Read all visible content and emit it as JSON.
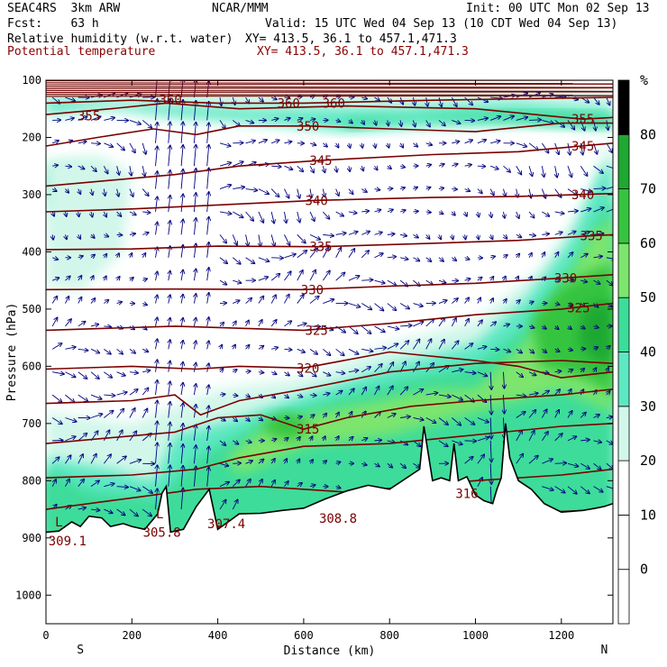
{
  "header": {
    "model": "SEAC4RS  3km ARW",
    "org": "NCAR/MMM",
    "init": "Init: 00 UTC Mon 02 Sep 13",
    "fcst": "Fcst:    63 h",
    "valid": "Valid: 15 UTC Wed 04 Sep 13 (10 CDT Wed 04 Sep 13)",
    "field1": "Relative humidity (w.r.t. water)",
    "xy1": "XY= 413.5, 36.1 to 457.1,471.3",
    "field2": "Potential temperature",
    "xy2": "XY= 413.5, 36.1 to 457.1,471.3"
  },
  "colors": {
    "theta_line": "#7a0000",
    "wind_vector": "#000080",
    "terrain": "#ffffff",
    "rh_levels": [
      "#ffffff",
      "#ffffff",
      "#ffffff",
      "#d2f7ea",
      "#5de8c2",
      "#3ddc9a",
      "#7de56d",
      "#36c43f",
      "#1fa832"
    ]
  },
  "chart_data": {
    "type": "contour",
    "xlabel": "Distance (km)",
    "ylabel": "Pressure (hPa)",
    "xlim": [
      0,
      1320
    ],
    "ylim": [
      1050,
      100
    ],
    "x_ticks": [
      0,
      200,
      400,
      600,
      800,
      1000,
      1200
    ],
    "y_ticks": [
      100,
      200,
      300,
      400,
      500,
      600,
      700,
      800,
      900,
      1000
    ],
    "end_labels": {
      "left": "S",
      "right": "N"
    },
    "colorbar": {
      "unit": "%",
      "levels": [
        -10,
        0,
        10,
        20,
        30,
        40,
        50,
        60,
        70,
        80,
        90
      ],
      "tick_labels": [
        0,
        10,
        20,
        30,
        40,
        50,
        60,
        70,
        80
      ]
    },
    "terrain_surface": {
      "x": [
        0,
        30,
        60,
        80,
        100,
        130,
        150,
        180,
        200,
        230,
        260,
        270,
        280,
        290,
        300,
        320,
        350,
        380,
        400,
        450,
        500,
        550,
        600,
        650,
        700,
        750,
        800,
        850,
        870,
        880,
        900,
        920,
        940,
        950,
        960,
        980,
        1000,
        1020,
        1040,
        1050,
        1060,
        1070,
        1080,
        1100,
        1130,
        1160,
        1200,
        1250,
        1280,
        1300,
        1320
      ],
      "p": [
        890,
        888,
        872,
        880,
        862,
        865,
        880,
        875,
        880,
        885,
        858,
        822,
        810,
        890,
        888,
        885,
        845,
        815,
        885,
        858,
        857,
        852,
        848,
        832,
        818,
        808,
        815,
        790,
        780,
        705,
        800,
        795,
        800,
        735,
        800,
        793,
        825,
        835,
        840,
        815,
        795,
        700,
        760,
        800,
        815,
        840,
        855,
        852,
        848,
        845,
        840
      ]
    },
    "theta_contours": [
      {
        "value": 305.8,
        "label": "305.8",
        "x": 270,
        "p": 890
      },
      {
        "value": 307.4,
        "label": "307.4",
        "x": 420,
        "p": 875
      },
      {
        "value": 308.8,
        "label": "308.8",
        "x": 680,
        "p": 866
      },
      {
        "value": 309.1,
        "label": "309.1",
        "x": 50,
        "p": 905
      },
      {
        "value": 315,
        "label": "315",
        "x": 610,
        "p": 710
      },
      {
        "value": 316,
        "label": "316",
        "x": 980,
        "p": 822
      },
      {
        "value": 320,
        "label": "320",
        "x": 610,
        "p": 603
      },
      {
        "value": 325,
        "label": "325",
        "x": 630,
        "p": 537
      },
      {
        "value": 325,
        "label": "325",
        "x": 1240,
        "p": 498
      },
      {
        "value": 330,
        "label": "330",
        "x": 620,
        "p": 466
      },
      {
        "value": 330,
        "label": "330",
        "x": 1210,
        "p": 446
      },
      {
        "value": 335,
        "label": "335",
        "x": 640,
        "p": 391
      },
      {
        "value": 335,
        "label": "335",
        "x": 1270,
        "p": 372
      },
      {
        "value": 340,
        "label": "340",
        "x": 630,
        "p": 310
      },
      {
        "value": 340,
        "label": "340",
        "x": 1250,
        "p": 300
      },
      {
        "value": 345,
        "label": "345",
        "x": 640,
        "p": 240
      },
      {
        "value": 345,
        "label": "345",
        "x": 1250,
        "p": 215
      },
      {
        "value": 350,
        "label": "350",
        "x": 610,
        "p": 180
      },
      {
        "value": 355,
        "label": "355",
        "x": 100,
        "p": 162
      },
      {
        "value": 355,
        "label": "355",
        "x": 1250,
        "p": 168
      },
      {
        "value": 360,
        "label": "360",
        "x": 290,
        "p": 134
      },
      {
        "value": 360,
        "label": "360",
        "x": 565,
        "p": 140
      },
      {
        "value": 360,
        "label": "360",
        "x": 670,
        "p": 140
      }
    ],
    "low_markers": [
      {
        "label": "L",
        "x": 30,
        "p": 872
      },
      {
        "label": "L",
        "x": 265,
        "p": 858
      }
    ]
  }
}
